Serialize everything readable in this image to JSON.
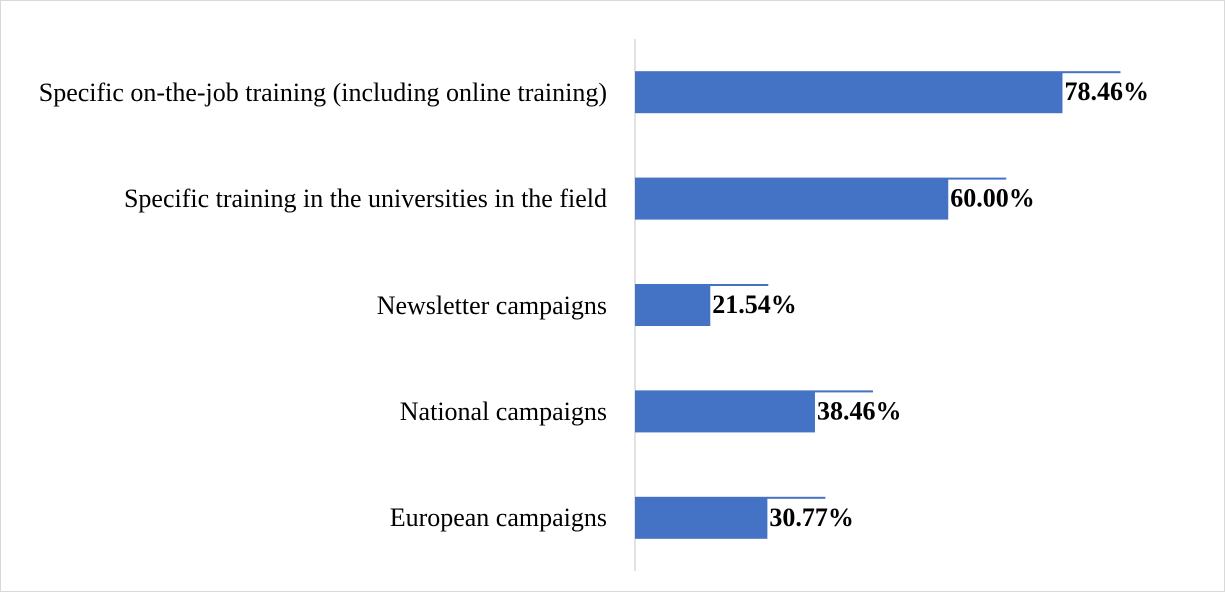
{
  "chart_data": {
    "type": "barh",
    "categories": [
      "Specific on-the-job training (including online training)",
      "Specific training in the universities in the field",
      "Newsletter campaigns",
      "National campaigns",
      "European campaigns"
    ],
    "values": [
      78.46,
      60.0,
      21.54,
      38.46,
      30.77
    ],
    "value_labels": [
      "78.46%",
      "60.00%",
      "21.54%",
      "38.46%",
      "30.77%"
    ],
    "color": "#4472c4",
    "xlim": [
      0,
      80
    ]
  }
}
